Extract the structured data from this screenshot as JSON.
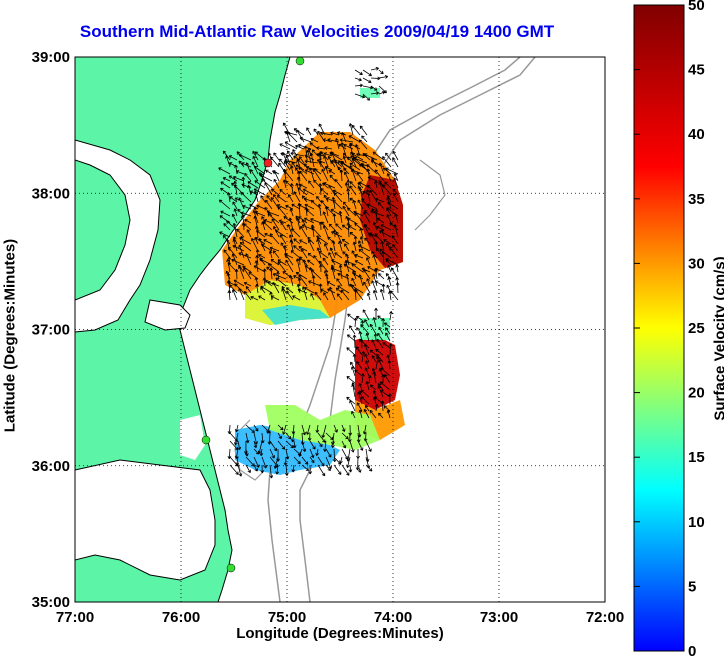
{
  "title": "Southern Mid-Atlantic Raw Velocities 2009/04/19 1400 GMT",
  "map": {
    "xlabel": "Longitude (Degrees:Minutes)",
    "ylabel": "Latitude (Degrees:Minutes)",
    "x_ticks": [
      "77:00",
      "76:00",
      "75:00",
      "74:00",
      "73:00",
      "72:00"
    ],
    "y_ticks": [
      "39:00",
      "38:00",
      "37:00",
      "36:00",
      "35:00"
    ],
    "lon_range": [
      -77,
      -72
    ],
    "lat_range": [
      35,
      39
    ],
    "land_color": "#5cf5a8",
    "grid": true
  },
  "colorbar": {
    "label": "Surface Velocity (cm/s)",
    "ticks": [
      "0",
      "5",
      "10",
      "15",
      "20",
      "25",
      "30",
      "35",
      "40",
      "45",
      "50"
    ],
    "range": [
      0,
      50
    ],
    "colormap": "jet"
  }
}
